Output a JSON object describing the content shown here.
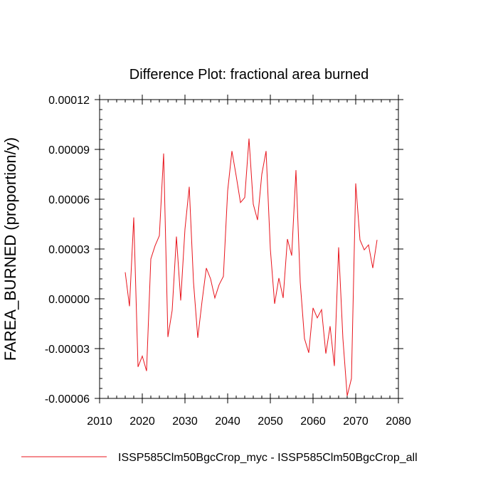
{
  "chart_data": {
    "type": "line",
    "title": "Difference Plot: fractional area burned",
    "xlabel": "",
    "ylabel": "FAREA_BURNED  (proportion/y)",
    "xlim": [
      2010,
      2080
    ],
    "ylim": [
      -6e-05,
      0.00012
    ],
    "x_ticks": [
      2010,
      2020,
      2030,
      2040,
      2050,
      2060,
      2070,
      2080
    ],
    "x_tick_labels": [
      "2010",
      "2020",
      "2030",
      "2040",
      "2050",
      "2060",
      "2070",
      "2080"
    ],
    "y_ticks": [
      -6e-05,
      -3e-05,
      0.0,
      3e-05,
      6e-05,
      9e-05,
      0.00012
    ],
    "y_tick_labels": [
      "-0.00006",
      "-0.00003",
      "0.00000",
      "0.00003",
      "0.00006",
      "0.00009",
      "0.00012"
    ],
    "grid": false,
    "legend_position": "bottom",
    "series": [
      {
        "name": "ISSP585Clm50BgcCrop_myc - ISSP585Clm50BgcCrop_all",
        "color": "#e8141c",
        "x": [
          2016,
          2017,
          2018,
          2019,
          2020,
          2021,
          2022,
          2023,
          2024,
          2025,
          2026,
          2027,
          2028,
          2029,
          2030,
          2031,
          2032,
          2033,
          2034,
          2035,
          2036,
          2037,
          2038,
          2039,
          2040,
          2041,
          2042,
          2043,
          2044,
          2045,
          2046,
          2047,
          2048,
          2049,
          2050,
          2051,
          2052,
          2053,
          2054,
          2055,
          2056,
          2057,
          2058,
          2059,
          2060,
          2061,
          2062,
          2063,
          2064,
          2065,
          2066,
          2067,
          2068,
          2069,
          2070,
          2071,
          2072,
          2073,
          2074,
          2075
        ],
        "values": [
          1.6e-05,
          -4.5e-06,
          4.9e-05,
          -4.1e-05,
          -3.45e-05,
          -4.35e-05,
          2.4e-05,
          3.2e-05,
          3.8e-05,
          8.75e-05,
          -2.3e-05,
          -7e-06,
          3.75e-05,
          -1e-06,
          4.2e-05,
          6.75e-05,
          1e-05,
          -2.35e-05,
          -1.5e-06,
          1.85e-05,
          1.2e-05,
          5e-07,
          8.5e-06,
          1.35e-05,
          6.5e-05,
          8.9e-05,
          7.4e-05,
          5.8e-05,
          6.1e-05,
          9.65e-05,
          5.7e-05,
          4.75e-05,
          7.5e-05,
          8.9e-05,
          3e-05,
          -3e-06,
          1.25e-05,
          5e-07,
          3.6e-05,
          2.6e-05,
          7.75e-05,
          1e-05,
          -2.4e-05,
          -3.25e-05,
          -5.5e-06,
          -1.15e-05,
          -6.5e-06,
          -3.3e-05,
          -1.65e-05,
          -4.05e-05,
          3.1e-05,
          -2.4e-05,
          -5.85e-05,
          -4.8e-05,
          6.95e-05,
          3.55e-05,
          2.95e-05,
          3.25e-05,
          1.85e-05,
          3.55e-05
        ]
      }
    ]
  }
}
